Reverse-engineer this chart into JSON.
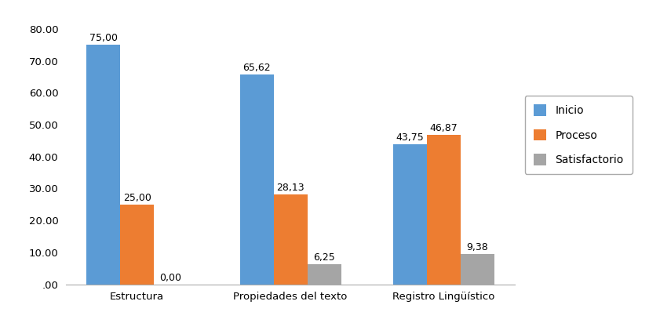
{
  "categories": [
    "Estructura",
    "Propiedades del texto",
    "Registro Lingüístico"
  ],
  "series": {
    "Inicio": [
      75.0,
      65.62,
      43.75
    ],
    "Proceso": [
      25.0,
      28.13,
      46.87
    ],
    "Satisfactorio": [
      0.0,
      6.25,
      9.38
    ]
  },
  "colors": {
    "Inicio": "#5B9BD5",
    "Proceso": "#ED7D31",
    "Satisfactorio": "#A5A5A5"
  },
  "ylim": [
    0,
    85
  ],
  "yticks": [
    0.0,
    10.0,
    20.0,
    30.0,
    40.0,
    50.0,
    60.0,
    70.0,
    80.0
  ],
  "ytick_labels": [
    ".00",
    "10.00",
    "20.00",
    "30.00",
    "40.00",
    "50.00",
    "60.00",
    "70.00",
    "80.00"
  ],
  "bar_width": 0.22,
  "label_fontsize": 9,
  "tick_fontsize": 9.5,
  "legend_fontsize": 10,
  "background_color": "#ffffff"
}
